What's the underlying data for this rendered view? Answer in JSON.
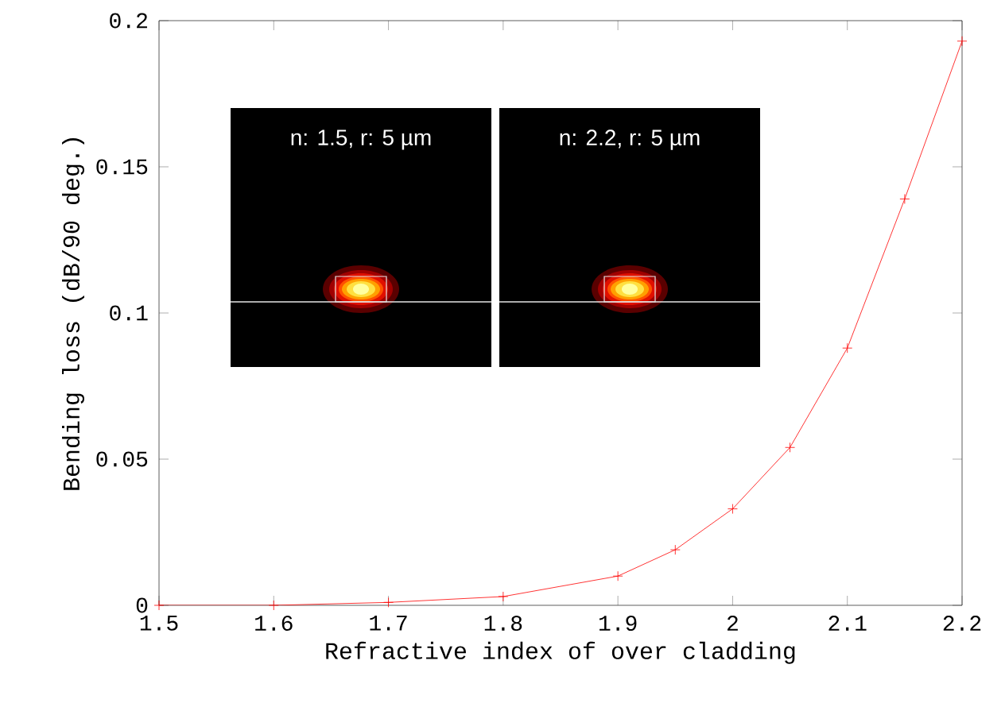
{
  "chart_data": {
    "type": "line",
    "xlabel": "Refractive index of over cladding",
    "ylabel": "Bending loss (dB/90 deg.)",
    "x": [
      1.5,
      1.6,
      1.7,
      1.8,
      1.9,
      1.95,
      2.0,
      2.05,
      2.1,
      2.15,
      2.2
    ],
    "series": [
      {
        "color": "#ff0000",
        "values": [
          0,
          0,
          0.001,
          0.003,
          0.01,
          0.019,
          0.033,
          0.054,
          0.088,
          0.139,
          0.193
        ]
      }
    ],
    "xlim": [
      1.5,
      2.2
    ],
    "ylim": [
      0,
      0.2
    ],
    "xticks": [
      1.5,
      1.6,
      1.7,
      1.8,
      1.9,
      2,
      2.1,
      2.2
    ],
    "yticks": [
      0,
      0.05,
      0.1,
      0.15,
      0.2
    ],
    "marker": "cross",
    "grid": false,
    "annotations": [
      "n: 1.5, r: 5 µm",
      "n: 2.2, r: 5 µm"
    ]
  }
}
